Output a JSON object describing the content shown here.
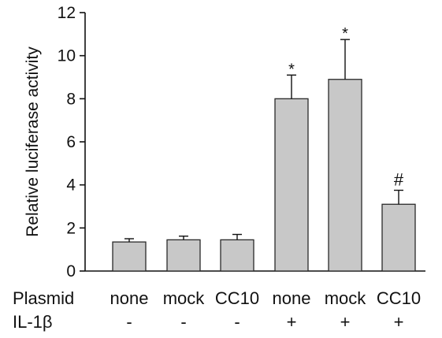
{
  "chart_data": {
    "type": "bar",
    "title": "",
    "ylabel": "Relative luciferase activity",
    "xlabel": "",
    "ylim": [
      0,
      12
    ],
    "yticks": [
      0,
      2,
      4,
      6,
      8,
      10,
      12
    ],
    "grid": false,
    "bar_color": "#c8c8c8",
    "bar_edge_color": "#2a2a2a",
    "categories": [
      "none",
      "mock",
      "CC10",
      "none",
      "mock",
      "CC10"
    ],
    "values": [
      1.35,
      1.45,
      1.45,
      8.0,
      8.9,
      3.1
    ],
    "errors": [
      0.15,
      0.17,
      0.25,
      1.1,
      1.85,
      0.65
    ],
    "annotations": [
      "",
      "",
      "",
      "*",
      "*",
      "#"
    ],
    "rows": [
      {
        "label": "Plasmid",
        "values": [
          "none",
          "mock",
          "CC10",
          "none",
          "mock",
          "CC10"
        ]
      },
      {
        "label": "IL-1β",
        "values": [
          "-",
          "-",
          "-",
          "+",
          "+",
          "+"
        ]
      }
    ]
  }
}
